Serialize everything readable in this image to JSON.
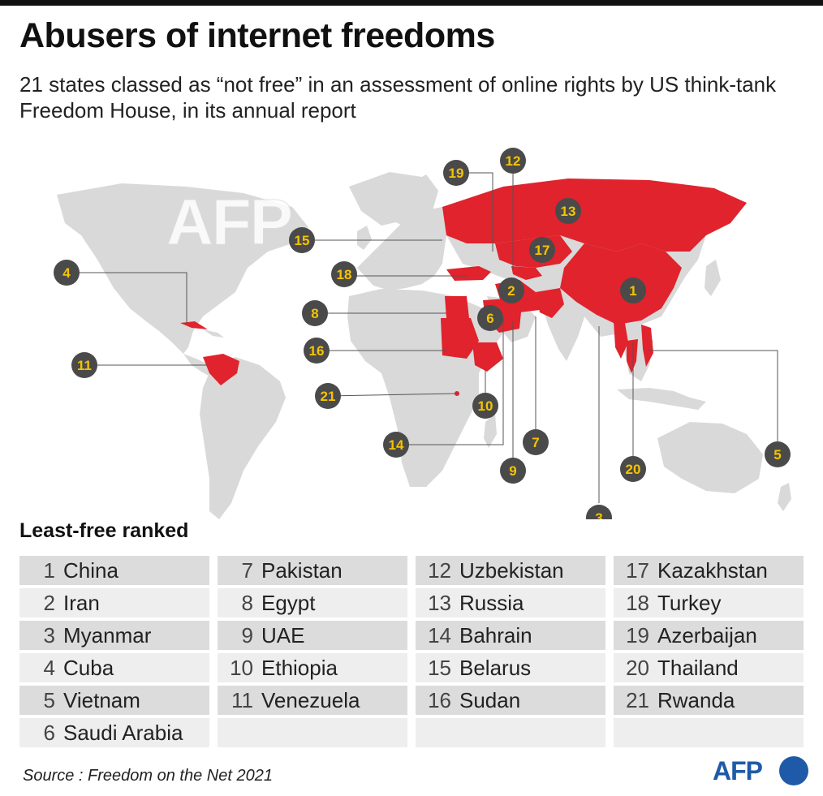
{
  "title": "Abusers of internet freedoms",
  "subtitle": "21 states classed as “not free” in an assessment of online rights by US think-tank Freedom House, in its annual report",
  "watermark": "AFP",
  "colors": {
    "highlight": "#e0232c",
    "land": "#d9d9d9",
    "marker": "#4a4a4a",
    "marker_text": "#f5c400",
    "afp_blue": "#1e5aa8"
  },
  "map": {
    "markers": [
      {
        "n": "1",
        "country": "China"
      },
      {
        "n": "2",
        "country": "Iran"
      },
      {
        "n": "3",
        "country": "Myanmar"
      },
      {
        "n": "4",
        "country": "Cuba"
      },
      {
        "n": "5",
        "country": "Vietnam"
      },
      {
        "n": "6",
        "country": "Saudi Arabia"
      },
      {
        "n": "7",
        "country": "Pakistan"
      },
      {
        "n": "8",
        "country": "Egypt"
      },
      {
        "n": "9",
        "country": "UAE"
      },
      {
        "n": "10",
        "country": "Ethiopia"
      },
      {
        "n": "11",
        "country": "Venezuela"
      },
      {
        "n": "12",
        "country": "Uzbekistan"
      },
      {
        "n": "13",
        "country": "Russia"
      },
      {
        "n": "14",
        "country": "Bahrain"
      },
      {
        "n": "15",
        "country": "Belarus"
      },
      {
        "n": "16",
        "country": "Sudan"
      },
      {
        "n": "17",
        "country": "Kazakhstan"
      },
      {
        "n": "18",
        "country": "Turkey"
      },
      {
        "n": "19",
        "country": "Azerbaijan"
      },
      {
        "n": "20",
        "country": "Thailand"
      },
      {
        "n": "21",
        "country": "Rwanda"
      }
    ]
  },
  "ranking": {
    "title": "Least-free ranked",
    "columns": [
      [
        {
          "rank": "1",
          "country": "China"
        },
        {
          "rank": "2",
          "country": "Iran"
        },
        {
          "rank": "3",
          "country": "Myanmar"
        },
        {
          "rank": "4",
          "country": "Cuba"
        },
        {
          "rank": "5",
          "country": "Vietnam"
        },
        {
          "rank": "6",
          "country": "Saudi Arabia"
        }
      ],
      [
        {
          "rank": "7",
          "country": "Pakistan"
        },
        {
          "rank": "8",
          "country": "Egypt"
        },
        {
          "rank": "9",
          "country": "UAE"
        },
        {
          "rank": "10",
          "country": "Ethiopia"
        },
        {
          "rank": "11",
          "country": "Venezuela"
        }
      ],
      [
        {
          "rank": "12",
          "country": "Uzbekistan"
        },
        {
          "rank": "13",
          "country": "Russia"
        },
        {
          "rank": "14",
          "country": "Bahrain"
        },
        {
          "rank": "15",
          "country": "Belarus"
        },
        {
          "rank": "16",
          "country": "Sudan"
        }
      ],
      [
        {
          "rank": "17",
          "country": "Kazakhstan"
        },
        {
          "rank": "18",
          "country": "Turkey"
        },
        {
          "rank": "19",
          "country": "Azerbaijan"
        },
        {
          "rank": "20",
          "country": "Thailand"
        },
        {
          "rank": "21",
          "country": "Rwanda"
        }
      ]
    ]
  },
  "source": "Source : Freedom on the Net 2021",
  "logo": "AFP"
}
